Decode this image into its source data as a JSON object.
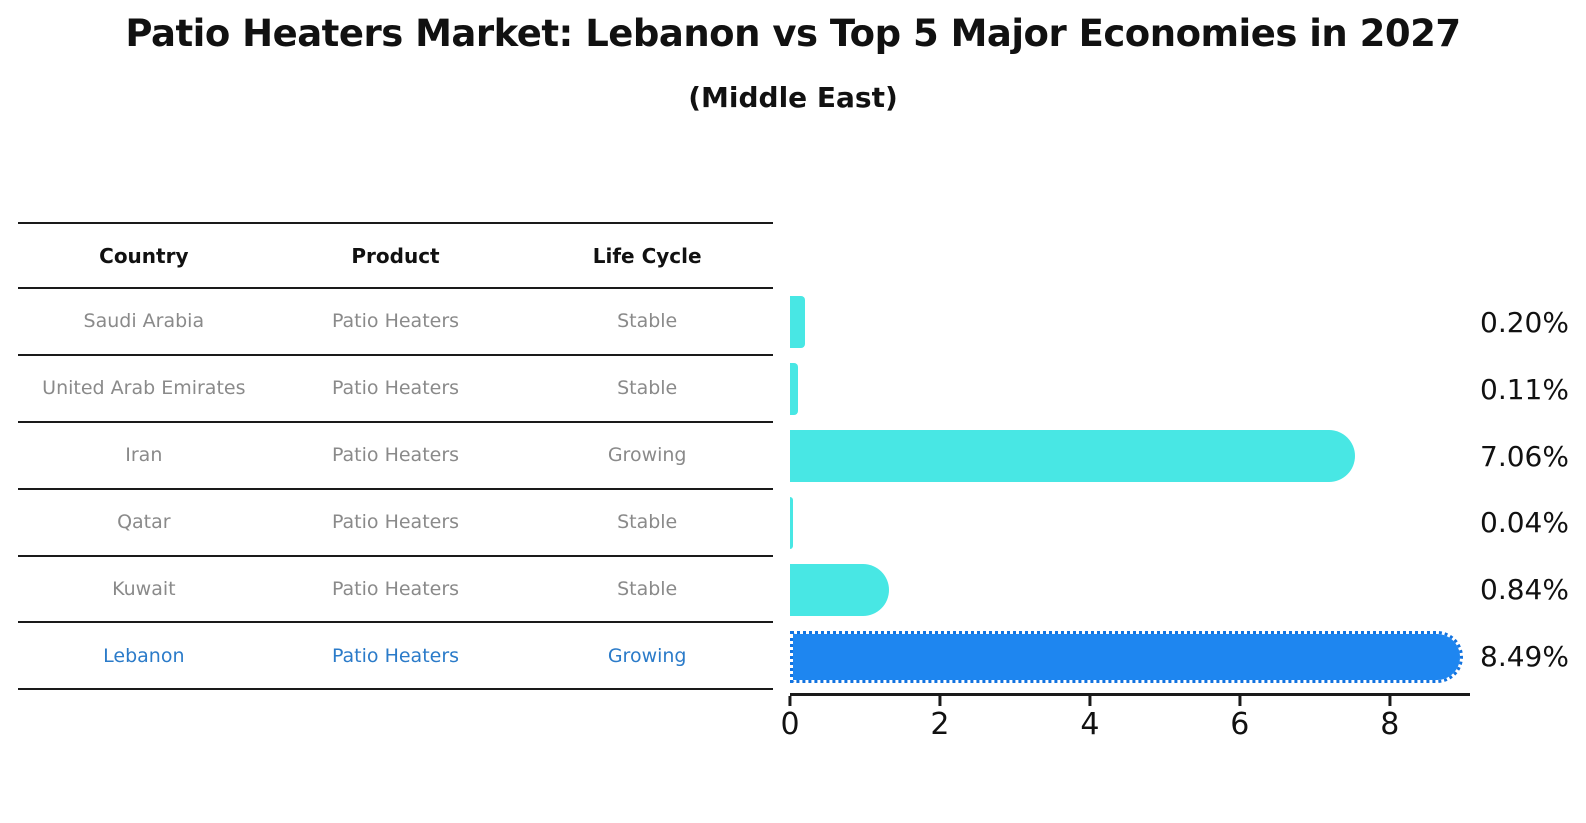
{
  "header": {
    "title": "Patio Heaters Market: Lebanon vs Top 5 Major Economies in 2027",
    "subtitle": "(Middle East)"
  },
  "table": {
    "columns": [
      "Country",
      "Product",
      "Life Cycle"
    ],
    "rows": [
      {
        "country": "Saudi Arabia",
        "product": "Patio Heaters",
        "life_cycle": "Stable",
        "highlighted": false
      },
      {
        "country": "United Arab Emirates",
        "product": "Patio Heaters",
        "life_cycle": "Stable",
        "highlighted": false
      },
      {
        "country": "Iran",
        "product": "Patio Heaters",
        "life_cycle": "Growing",
        "highlighted": false
      },
      {
        "country": "Qatar",
        "product": "Patio Heaters",
        "life_cycle": "Stable",
        "highlighted": false
      },
      {
        "country": "Kuwait",
        "product": "Patio Heaters",
        "life_cycle": "Stable",
        "highlighted": false
      },
      {
        "country": "Lebanon",
        "product": "Patio Heaters",
        "life_cycle": "Growing",
        "highlighted": true
      }
    ]
  },
  "chart_data": {
    "type": "bar",
    "orientation": "horizontal",
    "title": "Patio Heaters Market: Lebanon vs Top 5 Major Economies in 2027",
    "subtitle": "(Middle East)",
    "categories": [
      "Saudi Arabia",
      "United Arab Emirates",
      "Iran",
      "Qatar",
      "Kuwait",
      "Lebanon"
    ],
    "values": [
      0.2,
      0.11,
      7.06,
      0.04,
      0.84,
      8.49
    ],
    "value_labels": [
      "0.20%",
      "0.11%",
      "7.06%",
      "0.04%",
      "0.84%",
      "8.49%"
    ],
    "unit": "%",
    "xlabel": "",
    "ylabel": "",
    "xlim": [
      0,
      9.07
    ],
    "xticks": [
      0,
      2,
      4,
      6,
      8
    ],
    "xtick_labels": [
      "0",
      "2",
      "4",
      "6",
      "8"
    ],
    "grid": false,
    "legend": "none",
    "highlight_index": 5,
    "bar_color": "#48E7E4",
    "highlight_color": "#1E86F0",
    "highlight_border_color": "#1273E0"
  },
  "colors": {
    "background": "#FFFFFF",
    "text_primary": "#111111",
    "text_muted": "#8A8A8A",
    "highlight_text": "#2B7BC9",
    "rule": "#1A1A1A"
  }
}
